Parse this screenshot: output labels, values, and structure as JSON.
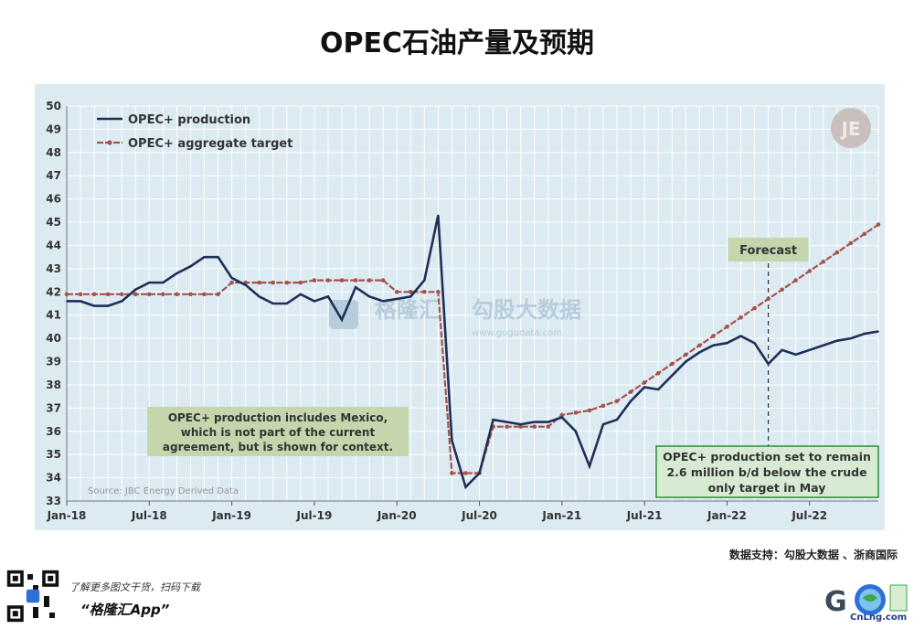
{
  "header": {
    "title": "OPEC石油产量及预期"
  },
  "chart_data": {
    "type": "line",
    "x": [
      "Jan-18",
      "Feb-18",
      "Mar-18",
      "Apr-18",
      "May-18",
      "Jun-18",
      "Jul-18",
      "Aug-18",
      "Sep-18",
      "Oct-18",
      "Nov-18",
      "Dec-18",
      "Jan-19",
      "Feb-19",
      "Mar-19",
      "Apr-19",
      "May-19",
      "Jun-19",
      "Jul-19",
      "Aug-19",
      "Sep-19",
      "Oct-19",
      "Nov-19",
      "Dec-19",
      "Jan-20",
      "Feb-20",
      "Mar-20",
      "Apr-20",
      "May-20",
      "Jun-20",
      "Jul-20",
      "Aug-20",
      "Sep-20",
      "Oct-20",
      "Nov-20",
      "Dec-20",
      "Jan-21",
      "Feb-21",
      "Mar-21",
      "Apr-21",
      "May-21",
      "Jun-21",
      "Jul-21",
      "Aug-21",
      "Sep-21",
      "Oct-21",
      "Nov-21",
      "Dec-21",
      "Jan-22",
      "Feb-22",
      "Mar-22",
      "Apr-22",
      "May-22",
      "Jun-22",
      "Jul-22",
      "Aug-22",
      "Sep-22",
      "Oct-22",
      "Nov-22",
      "Dec-22"
    ],
    "x_tick_labels": [
      "Jan-18",
      "Jul-18",
      "Jan-19",
      "Jul-19",
      "Jan-20",
      "Jul-20",
      "Jan-21",
      "Jul-21",
      "Jan-22",
      "Jul-22"
    ],
    "ylim": [
      33,
      50
    ],
    "y_ticks": [
      33,
      34,
      35,
      36,
      37,
      38,
      39,
      40,
      41,
      42,
      43,
      44,
      45,
      46,
      47,
      48,
      49,
      50
    ],
    "grid": true,
    "legend_position": "top-left",
    "series": [
      {
        "name": "OPEC+ production",
        "color": "#1f2f57",
        "values": [
          41.6,
          41.6,
          41.4,
          41.4,
          41.6,
          42.1,
          42.4,
          42.4,
          42.8,
          43.1,
          43.5,
          43.5,
          42.6,
          42.3,
          41.8,
          41.5,
          41.5,
          41.9,
          41.6,
          41.8,
          40.8,
          42.2,
          41.8,
          41.6,
          41.7,
          41.8,
          42.5,
          45.3,
          35.6,
          33.6,
          34.2,
          36.5,
          36.4,
          36.3,
          36.4,
          36.4,
          36.6,
          36.0,
          34.5,
          36.3,
          36.5,
          37.3,
          37.9,
          37.8,
          38.4,
          39.0,
          39.4,
          39.7,
          39.8,
          40.1,
          39.8,
          38.9,
          39.5,
          39.3,
          39.5,
          39.7,
          39.9,
          40.0,
          40.2,
          40.3
        ]
      },
      {
        "name": "OPEC+ aggregate target",
        "color": "#a5534d",
        "values": [
          41.9,
          41.9,
          41.9,
          41.9,
          41.9,
          41.9,
          41.9,
          41.9,
          41.9,
          41.9,
          41.9,
          41.9,
          42.4,
          42.4,
          42.4,
          42.4,
          42.4,
          42.4,
          42.5,
          42.5,
          42.5,
          42.5,
          42.5,
          42.5,
          42.0,
          42.0,
          42.0,
          42.0,
          34.2,
          34.2,
          34.2,
          36.2,
          36.2,
          36.2,
          36.2,
          36.2,
          36.7,
          36.8,
          36.9,
          37.1,
          37.3,
          37.7,
          38.1,
          38.5,
          38.9,
          39.3,
          39.7,
          40.1,
          40.5,
          40.9,
          41.3,
          41.7,
          42.1,
          42.5,
          42.9,
          43.3,
          43.7,
          44.1,
          44.5,
          44.9
        ]
      }
    ],
    "forecast_label": "Forecast",
    "forecast_start": "Apr-22",
    "annotations": [
      "OPEC+ production includes Mexico,\nwhich is not part of the current\nagreement, but is shown for context.",
      "OPEC+ production set to remain\n2.6 million b/d below the crude\nonly target in May"
    ],
    "source_note": "Source: JBC Energy  Derived Data",
    "watermarks": [
      "格隆汇",
      "勾股大数据",
      "www.gogudata.com"
    ]
  },
  "colors": {
    "background": "#dceaf2",
    "grid": "#ffffff",
    "production": "#1f2f57",
    "target": "#a5534d"
  },
  "footer": {
    "data_support": "数据支持：勾股大数据 、浙商国际",
    "promo": "了解更多图文干货，扫码下载",
    "app_name": "“格隆汇App”",
    "brand": "CnLng.com"
  }
}
